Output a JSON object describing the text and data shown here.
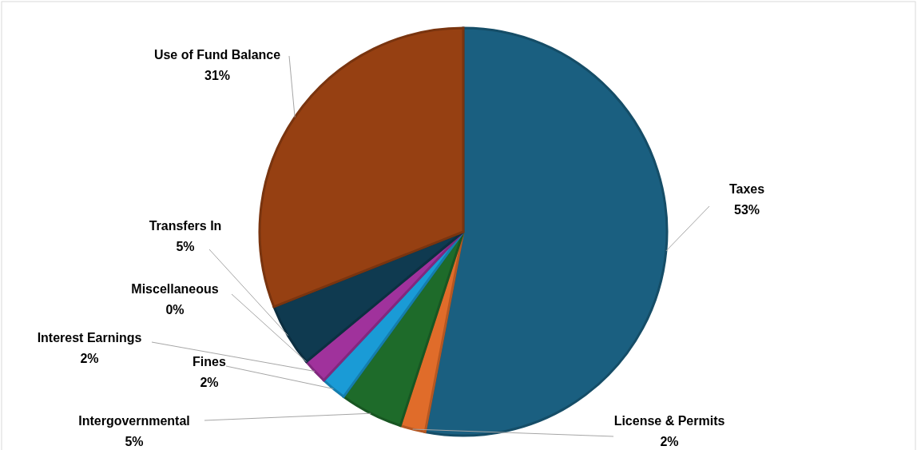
{
  "chart_data": {
    "type": "pie",
    "categories": [
      "Taxes",
      "License & Permits",
      "Intergovernmental",
      "Fines",
      "Interest Earnings",
      "Miscellaneous",
      "Transfers In",
      "Use of Fund Balance"
    ],
    "values": [
      53,
      2,
      5,
      2,
      2,
      0,
      5,
      31
    ],
    "value_labels": [
      "53%",
      "2%",
      "5%",
      "2%",
      "2%",
      "0%",
      "5%",
      "31%"
    ],
    "colors": [
      "#1a5f80",
      "#e06c2a",
      "#1e6b2a",
      "#1a9bd6",
      "#a0329c",
      "#8fb3d9",
      "#0f3a50",
      "#964012"
    ]
  }
}
